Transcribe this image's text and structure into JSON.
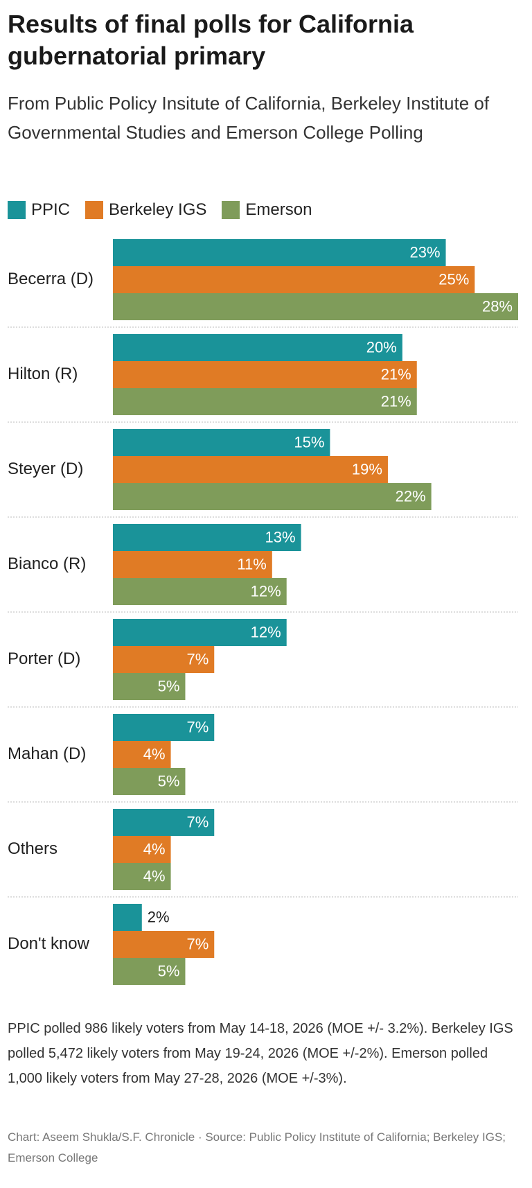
{
  "chart_data": {
    "type": "bar",
    "orientation": "horizontal",
    "title": "Results of final polls for California gubernatorial primary",
    "subtitle": "From Public Policy Insitute of California, Berkeley Institute of Governmental Studies and Emerson College Polling",
    "categories": [
      "Becerra (D)",
      "Hilton (R)",
      "Steyer (D)",
      "Bianco (R)",
      "Porter (D)",
      "Mahan (D)",
      "Others",
      "Don't know"
    ],
    "series": [
      {
        "name": "PPIC",
        "color": "#1a9399",
        "values": [
          23,
          20,
          15,
          13,
          12,
          7,
          7,
          2
        ],
        "value_labels": [
          "23%",
          "20%",
          "15%",
          "13%",
          "12%",
          "7%",
          "7%",
          "2%"
        ]
      },
      {
        "name": "Berkeley IGS",
        "color": "#e07b25",
        "values": [
          25,
          21,
          19,
          11,
          7,
          4,
          4,
          7
        ],
        "value_labels": [
          "25%",
          "21%",
          "19%",
          "11%",
          "7%",
          "4%",
          "4%",
          "7%"
        ]
      },
      {
        "name": "Emerson",
        "color": "#7f9c5a",
        "values": [
          28,
          21,
          22,
          12,
          5,
          5,
          4,
          5
        ],
        "value_labels": [
          "28%",
          "21%",
          "22%",
          "12%",
          "5%",
          "5%",
          "4%",
          "5%"
        ]
      }
    ],
    "xlim": [
      0,
      28
    ],
    "note": "PPIC polled 986 likely voters from May 14-18, 2026 (MOE +/- 3.2%). Berkeley IGS polled 5,472 likely voters from May 19-24, 2026 (MOE +/-2%). Emerson polled 1,000 likely voters from May 27-28, 2026 (MOE +/-3%).",
    "credits": "Chart: Aseem Shukla/S.F. Chronicle · Source: Public Policy Institute of California; Berkeley IGS; Emerson College"
  }
}
